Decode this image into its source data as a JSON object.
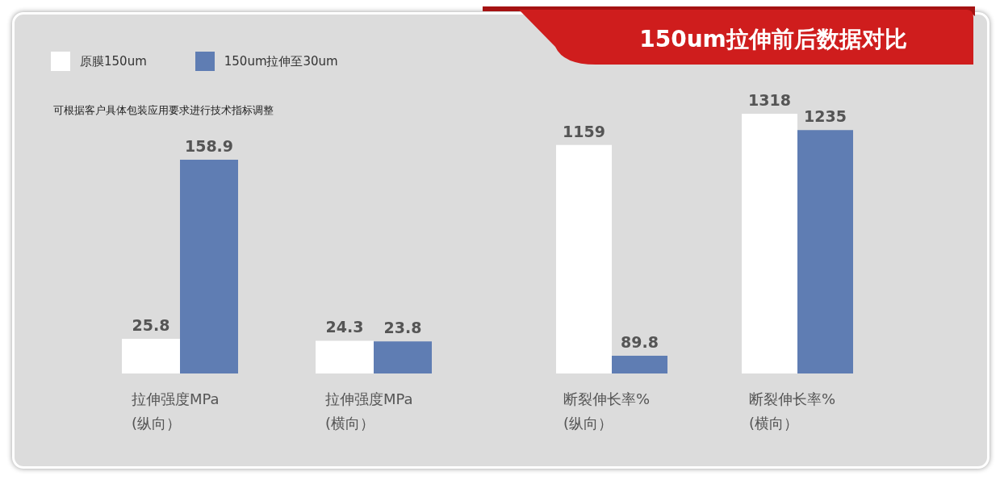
{
  "chart_data": [
    {
      "type": "bar",
      "annotations": [
        "可根据客户具体包装应用要求进行技术指标调整"
      ],
      "categories": [
        "拉伸强度MPa\n(纵向）",
        "拉伸强度MPa\n(横向）"
      ],
      "series": [
        {
          "name": "原膜150um",
          "color": "#ffffff",
          "values": [
            25.8,
            24.3
          ]
        },
        {
          "name": "150um拉伸至30um",
          "color": "#5f7db3",
          "values": [
            158.9,
            23.8
          ]
        }
      ],
      "data_labels": true,
      "legend": "top left",
      "grid": false
    },
    {
      "type": "bar",
      "title": "150um拉伸前后数据对比",
      "categories": [
        "断裂伸长率%\n(纵向）",
        "断裂伸长率%\n(横向）"
      ],
      "series": [
        {
          "color": "#ffffff",
          "values": [
            1159,
            1318
          ]
        },
        {
          "color": "#5f7db3",
          "values": [
            89.8,
            1235
          ]
        }
      ],
      "data_labels": true,
      "grid": false
    }
  ]
}
